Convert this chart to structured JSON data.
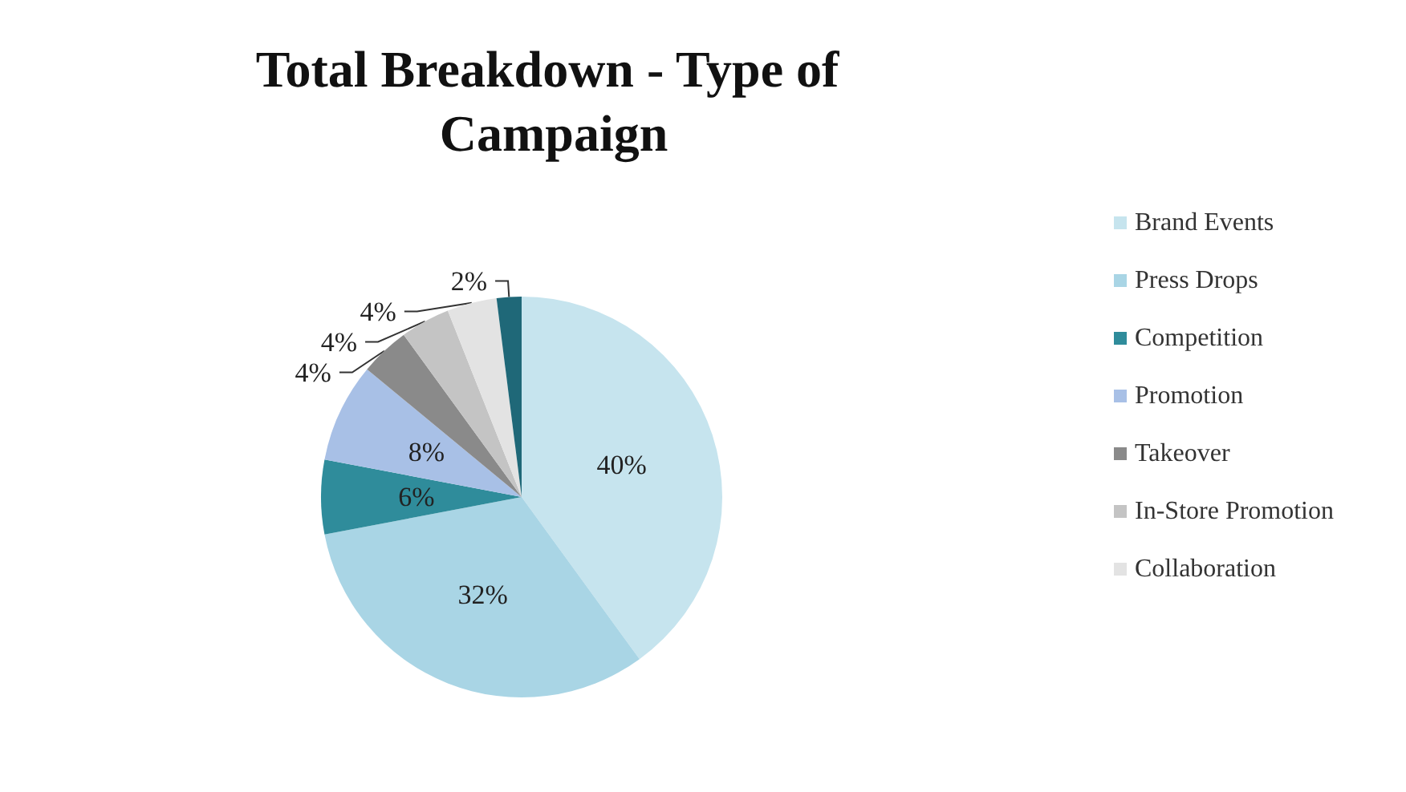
{
  "chart_data": {
    "type": "pie",
    "title": "Total Breakdown - Type of Campaign",
    "categories": [
      "Brand Events",
      "Press Drops",
      "Competition",
      "Promotion",
      "Takeover",
      "In-Store Promotion",
      "Collaboration",
      null
    ],
    "values": [
      40,
      32,
      6,
      8,
      4,
      4,
      4,
      2
    ],
    "value_labels": [
      "40%",
      "32%",
      "6%",
      "8%",
      "4%",
      "4%",
      "4%",
      "2%"
    ],
    "colors": [
      "#c6e4ee",
      "#a9d5e5",
      "#2f8c9b",
      "#a8c0e6",
      "#8a8a8a",
      "#c4c4c4",
      "#e3e3e3",
      "#1f6878"
    ],
    "legend": "right"
  }
}
